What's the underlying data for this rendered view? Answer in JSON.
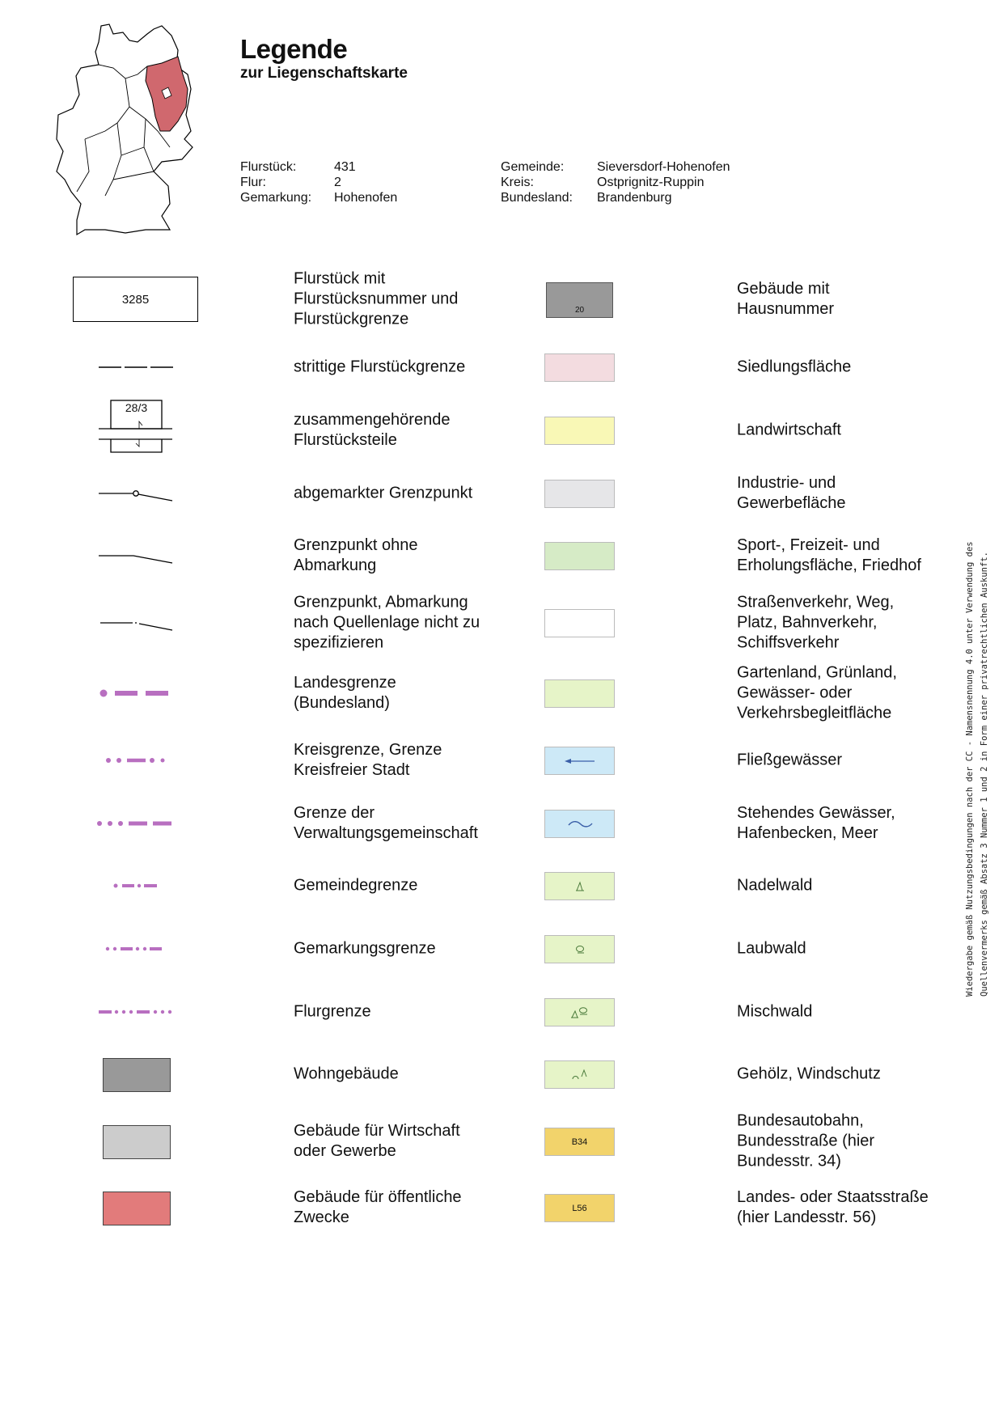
{
  "header": {
    "title": "Legende",
    "subtitle": "zur Liegenschaftskarte"
  },
  "info": {
    "left": [
      {
        "label": "Flurstück:",
        "value": "431"
      },
      {
        "label": "Flur:",
        "value": "2"
      },
      {
        "label": "Gemarkung:",
        "value": "Hohenofen"
      }
    ],
    "right": [
      {
        "label": "Gemeinde:",
        "value": "Sieversdorf-Hohenofen"
      },
      {
        "label": "Kreis:",
        "value": "Ostprignitz-Ruppin"
      },
      {
        "label": "Bundesland:",
        "value": "Brandenburg"
      }
    ]
  },
  "map": {
    "highlight_color": "#d0686e"
  },
  "legend": [
    {
      "left_text": "Flurstück mit\nFlurstücksnummer und\nFlurstückgrenze",
      "left_symbol_label": "3285",
      "right_text": "Gebäude mit\nHausnummer",
      "swatch_color": "#999999",
      "swatch_label": "20"
    },
    {
      "left_text": "strittige Flurstückgrenze",
      "right_text": "Siedlungsfläche",
      "swatch_color": "#f3dce0"
    },
    {
      "left_text": "zusammengehörende\nFlurstücksteile",
      "left_symbol_label": "28/3",
      "right_text": "Landwirtschaft",
      "swatch_color": "#f9f8b6"
    },
    {
      "left_text": "abgemarkter Grenzpunkt",
      "right_text": "Industrie- und\nGewerbefläche",
      "swatch_color": "#e6e6e8"
    },
    {
      "left_text": "Grenzpunkt ohne\nAbmarkung",
      "right_text": "Sport-, Freizeit- und\nErholungsfläche, Friedhof",
      "swatch_color": "#d6ebc6"
    },
    {
      "left_text": "Grenzpunkt, Abmarkung\nnach Quellenlage nicht zu\nspezifizieren",
      "right_text": "Straßenverkehr, Weg,\nPlatz, Bahnverkehr,\nSchiffsverkehr",
      "swatch_color": "#ffffff"
    },
    {
      "left_text": "Landesgrenze\n(Bundesland)",
      "right_text": "Gartenland, Grünland,\nGewässer- oder\nVerkehrsbegleitfläche",
      "swatch_color": "#e6f4c8"
    },
    {
      "left_text": "Kreisgrenze, Grenze\nKreisfreier Stadt",
      "right_text": "Fließgewässer",
      "swatch_color": "#cde9f7",
      "swatch_icon": "arrow-left-icon"
    },
    {
      "left_text": "Grenze der\nVerwaltungsgemeinschaft",
      "right_text": "Stehendes Gewässer,\nHafenbecken, Meer",
      "swatch_color": "#cde9f7",
      "swatch_icon": "wave-icon"
    },
    {
      "left_text": "Gemeindegrenze",
      "right_text": "Nadelwald",
      "swatch_color": "#e6f4c8",
      "swatch_icon": "conifer-icon"
    },
    {
      "left_text": "Gemarkungsgrenze",
      "right_text": "Laubwald",
      "swatch_color": "#e6f4c8",
      "swatch_icon": "deciduous-icon"
    },
    {
      "left_text": "Flurgrenze",
      "right_text": "Mischwald",
      "swatch_color": "#e6f4c8",
      "swatch_icon": "mixed-forest-icon"
    },
    {
      "left_text": "Wohngebäude",
      "left_color": "#999999",
      "right_text": "Gehölz, Windschutz",
      "swatch_color": "#e6f4c8",
      "swatch_icon": "shrub-icon"
    },
    {
      "left_text": "Gebäude für Wirtschaft\noder Gewerbe",
      "left_color": "#cccccc",
      "right_text": "Bundesautobahn,\nBundesstraße (hier\nBundesstr. 34)",
      "swatch_color": "#f2d36b",
      "swatch_label": "B34"
    },
    {
      "left_text": "Gebäude für öffentliche\nZwecke",
      "left_color": "#e27b7b",
      "right_text": "Landes- oder Staatsstraße\n(hier Landesstr. 56)",
      "swatch_color": "#f2d36b",
      "swatch_label": "L56"
    }
  ],
  "boundary_color": "#b86fc0",
  "credit": {
    "line1": "Wiedergabe gemäß Nutzungsbedingungen nach der CC - Namensnennung 4.0 unter Verwendung des",
    "line2": "Quellenvermerks gemäß Absatz 3 Nummer 1 und 2 in Form einer privatrechtlichen Auskunft."
  }
}
